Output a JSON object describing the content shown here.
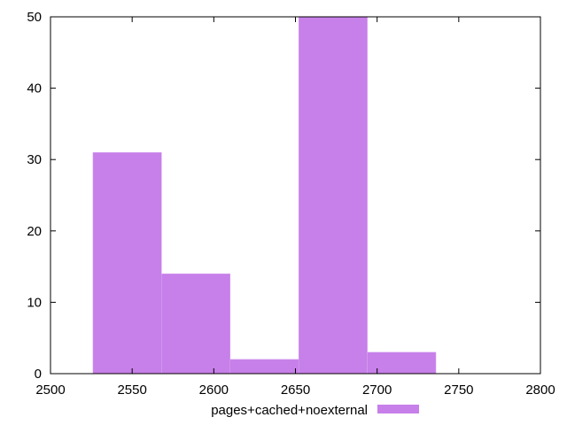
{
  "chart_data": {
    "type": "bar",
    "title": "",
    "xlabel": "",
    "ylabel": "",
    "xlim": [
      2500,
      2800
    ],
    "ylim": [
      0,
      50
    ],
    "xticks": [
      2500,
      2550,
      2600,
      2650,
      2700,
      2750,
      2800
    ],
    "yticks": [
      0,
      10,
      20,
      30,
      40,
      50
    ],
    "grid": false,
    "legend_position": "bottom-center",
    "series": [
      {
        "name": "pages+cached+noexternal",
        "color": "#c77fe9",
        "bins": [
          {
            "x0": 2526,
            "x1": 2568,
            "value": 31
          },
          {
            "x0": 2568,
            "x1": 2610,
            "value": 14
          },
          {
            "x0": 2610,
            "x1": 2652,
            "value": 2
          },
          {
            "x0": 2652,
            "x1": 2694,
            "value": 50
          },
          {
            "x0": 2694,
            "x1": 2736,
            "value": 3
          }
        ]
      }
    ]
  }
}
